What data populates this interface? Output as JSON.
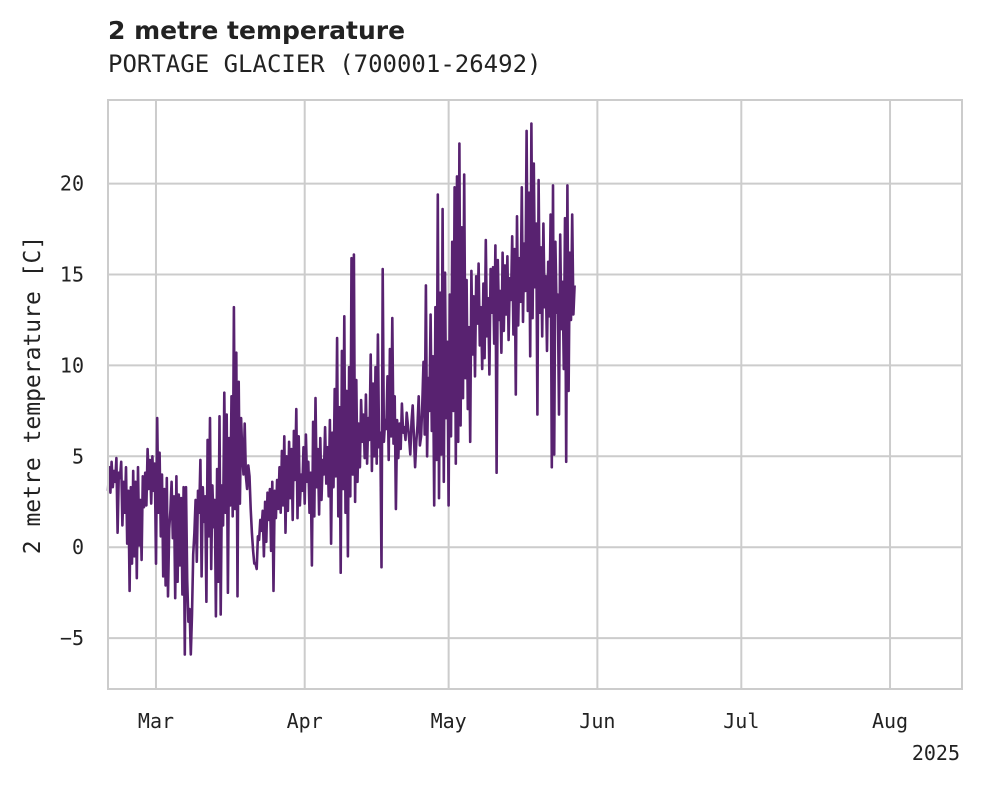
{
  "title": "2 metre temperature",
  "subtitle": "PORTAGE GLACIER (700001-26492)",
  "chart_data": {
    "type": "line",
    "ylabel": "2 metre temperature [C]",
    "xlabel": "",
    "year_label": "2025",
    "x_range": [
      "2025-02-19",
      "2025-08-16"
    ],
    "ylim": [
      -7.8,
      24.6
    ],
    "y_ticks": [
      -5,
      0,
      5,
      10,
      15,
      20
    ],
    "y_tick_labels": [
      "−5",
      "0",
      "5",
      "10",
      "15",
      "20"
    ],
    "x_ticks": [
      "2025-03-01",
      "2025-04-01",
      "2025-05-01",
      "2025-06-01",
      "2025-07-01",
      "2025-08-01"
    ],
    "x_tick_labels": [
      "Mar",
      "Apr",
      "May",
      "Jun",
      "Jul",
      "Aug"
    ],
    "grid": true,
    "line_color": "#582270",
    "series": [
      {
        "sampling": "6-hourly, starting 2025-02-19",
        "values": [
          3.1,
          4.4,
          3.0,
          4.7,
          3.3,
          4.2,
          3.6,
          4.9,
          0.8,
          4.1,
          3.8,
          4.7,
          1.2,
          3.6,
          1.9,
          4.4,
          0.2,
          3.1,
          -2.4,
          3.3,
          -0.9,
          4.2,
          -0.5,
          3.6,
          -1.7,
          4.4,
          0.1,
          2.6,
          -0.7,
          3.9,
          2.2,
          4.1,
          2.3,
          5.4,
          3.2,
          4.8,
          2.4,
          5.0,
          3.1,
          4.6,
          -0.9,
          7.1,
          1.9,
          5.2,
          0.6,
          4.0,
          -1.6,
          3.2,
          -2.1,
          3.8,
          -2.7,
          1.0,
          2.0,
          3.6,
          0.5,
          2.8,
          -2.8,
          3.9,
          -1.9,
          2.9,
          -1.0,
          2.7,
          -2.6,
          3.3,
          -5.9,
          3.3,
          -1.8,
          -4.1,
          -3.4,
          -5.9,
          -3.7,
          -0.4,
          0.8,
          2.6,
          -0.8,
          3.1,
          1.9,
          4.8,
          -1.6,
          3.3,
          1.4,
          2.8,
          -3.0,
          5.9,
          0.6,
          7.1,
          -1.2,
          3.4,
          1.1,
          2.6,
          -3.8,
          4.3,
          -1.9,
          7.2,
          -3.7,
          3.4,
          1.2,
          8.5,
          1.9,
          7.3,
          -2.5,
          6.0,
          2.3,
          8.3,
          1.7,
          13.2,
          2.1,
          10.7,
          -2.7,
          9.1,
          2.4,
          7.1,
          5.1,
          4.0,
          6.8,
          3.9,
          3.2,
          4.5,
          3.9,
          2.1,
          0.8,
          -0.2,
          -0.9,
          -0.9,
          -1.2,
          0.6,
          0.4,
          1.5,
          0.9,
          2.0,
          -0.5,
          2.5,
          0.3,
          3.0,
          1.5,
          3.2,
          -0.2,
          3.6,
          -2.4,
          3.1,
          1.6,
          3.7,
          2.1,
          4.4,
          1.9,
          5.3,
          2.3,
          6.1,
          0.8,
          5.0,
          2.0,
          5.8,
          2.7,
          5.4,
          1.5,
          6.4,
          3.7,
          7.6,
          1.6,
          6.1,
          2.3,
          4.0,
          3.1,
          5.5,
          2.4,
          6.2,
          3.6,
          4.7,
          1.9,
          4.1,
          -1.0,
          6.9,
          1.7,
          8.2,
          3.3,
          5.4,
          1.8,
          6.0,
          2.6,
          4.8,
          4.0,
          6.6,
          3.5,
          5.5,
          2.8,
          7.0,
          0.2,
          6.3,
          3.3,
          8.7,
          3.9,
          11.5,
          1.7,
          7.7,
          -1.4,
          10.8,
          3.2,
          12.7,
          1.9,
          8.6,
          -0.5,
          9.9,
          2.8,
          15.9,
          4.0,
          16.1,
          2.5,
          9.2,
          3.6,
          6.8,
          4.4,
          8.1,
          5.8,
          7.3,
          4.9,
          8.4,
          4.6,
          7.1,
          5.9,
          10.6,
          4.2,
          9.0,
          5.0,
          9.9,
          4.6,
          11.7,
          5.5,
          6.3,
          -1.1,
          15.3,
          5.8,
          7.0,
          6.5,
          9.4,
          4.8,
          10.9,
          6.1,
          12.6,
          5.7,
          8.3,
          2.1,
          7.0,
          4.9,
          6.8,
          5.4,
          7.9,
          6.3,
          6.6,
          5.9,
          7.4,
          6.7,
          6.0,
          5.1,
          6.9,
          7.8,
          6.1,
          4.4,
          5.8,
          6.7,
          8.3,
          5.6,
          6.1,
          7.9,
          10.2,
          6.2,
          14.4,
          5.0,
          9.3,
          7.5,
          12.8,
          6.4,
          10.5,
          2.3,
          13.2,
          4.8,
          19.4,
          2.7,
          14.0,
          5.1,
          18.6,
          3.6,
          15.1,
          7.1,
          11.3,
          2.3,
          13.9,
          6.1,
          16.8,
          7.5,
          19.8,
          4.6,
          20.4,
          5.8,
          22.2,
          6.7,
          17.6,
          8.2,
          20.5,
          9.3,
          14.7,
          7.6,
          12.1,
          5.8,
          15.2,
          10.6,
          13.8,
          9.4,
          14.9,
          12.3,
          15.6,
          11.1,
          13.2,
          9.8,
          14.5,
          10.4,
          16.9,
          11.6,
          13.7,
          9.5,
          15.3,
          12.9,
          15.4,
          11.2,
          16.6,
          4.1,
          15.8,
          12.5,
          14.1,
          10.7,
          16.2,
          11.9,
          15.5,
          12.8,
          16.0,
          11.4,
          14.8,
          13.6,
          17.1,
          11.7,
          16.4,
          8.4,
          18.2,
          12.2,
          15.9,
          13.5,
          19.8,
          12.4,
          16.7,
          14.1,
          22.9,
          13.0,
          19.5,
          10.5,
          23.3,
          12.6,
          21.1,
          14.3,
          17.8,
          7.3,
          20.2,
          12.9,
          16.5,
          11.6,
          17.8,
          13.2,
          14.9,
          10.8,
          15.7,
          12.7,
          18.3,
          4.4,
          19.9,
          5.1,
          16.8,
          12.9,
          13.9,
          7.3,
          17.2,
          12.0,
          14.6,
          9.8,
          18.1,
          4.7,
          19.9,
          8.6,
          16.2,
          12.5,
          18.3,
          12.8,
          14.4
        ]
      }
    ]
  }
}
